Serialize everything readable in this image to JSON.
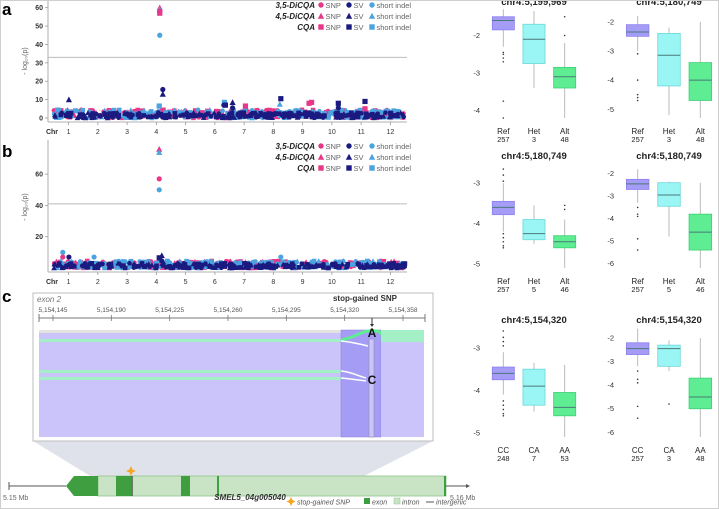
{
  "panels": {
    "a": "a",
    "b": "b",
    "c": "c"
  },
  "legend": {
    "rows": [
      {
        "trait": "3,5-DiCQA",
        "shape": "circle",
        "items": [
          "SNP",
          "SV",
          "short indel"
        ]
      },
      {
        "trait": "4,5-DiCQA",
        "shape": "triangle",
        "items": [
          "SNP",
          "SV",
          "short indel"
        ]
      },
      {
        "trait": "CQA",
        "shape": "square",
        "items": [
          "SNP",
          "SV",
          "short indel"
        ]
      }
    ],
    "colors": {
      "SNP": "#e8378a",
      "SV": "#1a1a80",
      "short indel": "#4ba3e0"
    }
  },
  "chart_data": [
    {
      "id": "manhattan-a",
      "type": "scatter",
      "title": "",
      "xlabel": "Chr",
      "ylabel": "-log10(p)",
      "ylim": [
        0,
        62
      ],
      "yticks": [
        0,
        10,
        20,
        30,
        40,
        50,
        60
      ],
      "categories": [
        "1",
        "2",
        "3",
        "4",
        "5",
        "6",
        "7",
        "8",
        "9",
        "10",
        "11",
        "12"
      ],
      "threshold": 33,
      "suggestive": 4,
      "grid": false,
      "legend_position": "top-right",
      "highlights": [
        {
          "chr": 4,
          "pos": 0.3,
          "value": 60,
          "trait": "4,5-DiCQA",
          "type": "SNP"
        },
        {
          "chr": 4,
          "pos": 0.3,
          "value": 59,
          "trait": "4,5-DiCQA",
          "type": "short indel"
        },
        {
          "chr": 4,
          "pos": 0.3,
          "value": 58,
          "trait": "3,5-DiCQA",
          "type": "SNP"
        },
        {
          "chr": 4,
          "pos": 0.3,
          "value": 57,
          "trait": "CQA",
          "type": "SNP"
        },
        {
          "chr": 4,
          "pos": 0.3,
          "value": 45,
          "trait": "3,5-DiCQA",
          "type": "short indel"
        },
        {
          "chr": 4,
          "pos": 0.6,
          "value": 15.5,
          "trait": "3,5-DiCQA",
          "type": "SV"
        },
        {
          "chr": 4,
          "pos": 0.6,
          "value": 13,
          "trait": "4,5-DiCQA",
          "type": "SV"
        },
        {
          "chr": 1,
          "pos": 0.0,
          "value": 10,
          "trait": "4,5-DiCQA",
          "type": "SV"
        },
        {
          "chr": 4,
          "pos": 0.25,
          "value": 6.5,
          "trait": "CQA",
          "type": "short indel"
        },
        {
          "chr": 6,
          "pos": 0.9,
          "value": 8.5,
          "trait": "CQA",
          "type": "short indel"
        },
        {
          "chr": 6,
          "pos": 0.85,
          "value": 7,
          "trait": "3,5-DiCQA",
          "type": "SV"
        },
        {
          "chr": 6,
          "pos": 1.0,
          "value": 7,
          "trait": "CQA",
          "type": "SV"
        },
        {
          "chr": 6,
          "pos": 1.7,
          "value": 8.5,
          "trait": "4,5-DiCQA",
          "type": "SV"
        },
        {
          "chr": 6,
          "pos": 1.7,
          "value": 5.5,
          "trait": "3,5-DiCQA",
          "type": "SV"
        },
        {
          "chr": 7,
          "pos": 0.1,
          "value": 6.5,
          "trait": "CQA",
          "type": "SNP"
        },
        {
          "chr": 8,
          "pos": 0.6,
          "value": 7.5,
          "trait": "4,5-DiCQA",
          "type": "short indel"
        },
        {
          "chr": 8,
          "pos": 0.7,
          "value": 10.5,
          "trait": "CQA",
          "type": "SV"
        },
        {
          "chr": 9,
          "pos": 0.6,
          "value": 8,
          "trait": "CQA",
          "type": "SNP"
        },
        {
          "chr": 9,
          "pos": 0.85,
          "value": 8.5,
          "trait": "CQA",
          "type": "SNP"
        },
        {
          "chr": 10,
          "pos": 0.6,
          "value": 8,
          "trait": "CQA",
          "type": "SV"
        },
        {
          "chr": 10,
          "pos": 0.6,
          "value": 5.5,
          "trait": "3,5-DiCQA",
          "type": "SV"
        },
        {
          "chr": 11,
          "pos": 0.35,
          "value": 9,
          "trait": "CQA",
          "type": "SV"
        },
        {
          "chr": 11,
          "pos": 0.35,
          "value": 5,
          "trait": "CQA",
          "type": "SNP"
        }
      ]
    },
    {
      "id": "manhattan-b",
      "type": "scatter",
      "title": "",
      "xlabel": "Chr",
      "ylabel": "-log10(p)",
      "ylim": [
        0,
        78
      ],
      "yticks": [
        20,
        40,
        60
      ],
      "categories": [
        "1",
        "2",
        "3",
        "4",
        "5",
        "6",
        "7",
        "8",
        "9",
        "10",
        "11",
        "12"
      ],
      "threshold": 41,
      "suggestive": 4,
      "grid": false,
      "legend_position": "top-right",
      "highlights": [
        {
          "chr": 4,
          "pos": 0.25,
          "value": 76,
          "trait": "4,5-DiCQA",
          "type": "SNP"
        },
        {
          "chr": 4,
          "pos": 0.25,
          "value": 74,
          "trait": "4,5-DiCQA",
          "type": "short indel"
        },
        {
          "chr": 4,
          "pos": 0.25,
          "value": 57,
          "trait": "3,5-DiCQA",
          "type": "SNP"
        },
        {
          "chr": 4,
          "pos": 0.25,
          "value": 50,
          "trait": "3,5-DiCQA",
          "type": "short indel"
        },
        {
          "chr": 1,
          "pos": -0.6,
          "value": 10,
          "trait": "3,5-DiCQA",
          "type": "short indel"
        },
        {
          "chr": 1,
          "pos": -0.6,
          "value": 7,
          "trait": "3,5-DiCQA",
          "type": "SNP"
        },
        {
          "chr": 1,
          "pos": 0.0,
          "value": 7,
          "trait": "3,5-DiCQA",
          "type": "SV"
        },
        {
          "chr": 2,
          "pos": -0.4,
          "value": 7,
          "trait": "3,5-DiCQA",
          "type": "short indel"
        },
        {
          "chr": 4,
          "pos": 0.25,
          "value": 6.5,
          "trait": "CQA",
          "type": "SV"
        },
        {
          "chr": 4,
          "pos": 0.5,
          "value": 8,
          "trait": "4,5-DiCQA",
          "type": "SV"
        },
        {
          "chr": 4,
          "pos": 0.5,
          "value": 4.5,
          "trait": "3,5-DiCQA",
          "type": "SV"
        },
        {
          "chr": 8,
          "pos": 0.7,
          "value": 7,
          "trait": "3,5-DiCQA",
          "type": "short indel"
        }
      ]
    },
    {
      "id": "box-a1",
      "type": "box",
      "title": "chr4:5,199,969",
      "yticks": [
        -2,
        -3,
        -4
      ],
      "ylim": [
        -4.2,
        -1.4
      ],
      "categories": [
        "Ref",
        "Het",
        "Alt"
      ],
      "counts": [
        "257",
        "3",
        "48"
      ],
      "boxes": [
        {
          "q1": -1.85,
          "median": -1.6,
          "q3": -1.5,
          "wlo": -2.3,
          "whi": -1.3,
          "outliers": [
            -2.45,
            -2.5,
            -2.6,
            -2.7,
            -3.75,
            -4.2
          ]
        },
        {
          "q1": -2.75,
          "median": -2.1,
          "q3": -1.7,
          "wlo": -3.4,
          "whi": -1.35,
          "outliers": []
        },
        {
          "q1": -3.4,
          "median": -3.1,
          "q3": -2.85,
          "wlo": -4.2,
          "whi": -2.2,
          "outliers": [
            -2.0,
            -1.5
          ]
        }
      ]
    },
    {
      "id": "box-a2",
      "type": "box",
      "title": "chr4:5,180,749",
      "yticks": [
        -2,
        -3,
        -4,
        -5
      ],
      "ylim": [
        -5.3,
        -1.7
      ],
      "categories": [
        "Ref",
        "Het",
        "Alt"
      ],
      "counts": [
        "257",
        "3",
        "48"
      ],
      "boxes": [
        {
          "q1": -2.5,
          "median": -2.35,
          "q3": -2.1,
          "wlo": -3.0,
          "whi": -1.8,
          "outliers": [
            -3.1,
            -4.0,
            -4.5,
            -4.6,
            -4.7
          ]
        },
        {
          "q1": -4.2,
          "median": -3.15,
          "q3": -2.4,
          "wlo": -5.2,
          "whi": -2.2,
          "outliers": []
        },
        {
          "q1": -4.7,
          "median": -4.0,
          "q3": -3.4,
          "wlo": -5.3,
          "whi": -2.0,
          "outliers": []
        }
      ]
    },
    {
      "id": "box-b1",
      "type": "box",
      "title": "chr4:5,180,749",
      "yticks": [
        -3,
        -4,
        -5
      ],
      "ylim": [
        -5.1,
        -2.6
      ],
      "categories": [
        "Ref",
        "Het",
        "Alt"
      ],
      "counts": [
        "257",
        "5",
        "46"
      ],
      "boxes": [
        {
          "q1": -3.78,
          "median": -3.6,
          "q3": -3.45,
          "wlo": -4.2,
          "whi": -3.0,
          "outliers": [
            -2.65,
            -2.8,
            -2.95,
            -4.25,
            -4.35,
            -4.45,
            -4.55,
            -4.6
          ]
        },
        {
          "q1": -4.4,
          "median": -4.25,
          "q3": -3.9,
          "wlo": -4.5,
          "whi": -3.55,
          "outliers": []
        },
        {
          "q1": -4.6,
          "median": -4.45,
          "q3": -4.3,
          "wlo": -5.1,
          "whi": -3.9,
          "outliers": [
            -3.55,
            -3.65
          ]
        }
      ]
    },
    {
      "id": "box-b2",
      "type": "box",
      "title": "chr4:5,180,749",
      "yticks": [
        -2,
        -3,
        -4,
        -5,
        -6
      ],
      "ylim": [
        -6.2,
        -1.7
      ],
      "categories": [
        "Ref",
        "Het",
        "Alt"
      ],
      "counts": [
        "257",
        "5",
        "46"
      ],
      "boxes": [
        {
          "q1": -2.7,
          "median": -2.45,
          "q3": -2.25,
          "wlo": -3.3,
          "whi": -1.8,
          "outliers": [
            -3.5,
            -3.8,
            -3.9,
            -4.9,
            -5.4
          ]
        },
        {
          "q1": -3.45,
          "median": -2.95,
          "q3": -2.4,
          "wlo": -4.8,
          "whi": -2.35,
          "outliers": []
        },
        {
          "q1": -5.4,
          "median": -4.6,
          "q3": -3.8,
          "wlo": -6.2,
          "whi": -2.4,
          "outliers": []
        }
      ]
    },
    {
      "id": "box-c1",
      "type": "box",
      "title": "chr4:5,154,320",
      "yticks": [
        -3,
        -4,
        -5
      ],
      "ylim": [
        -5.1,
        -2.6
      ],
      "categories": [
        "CC",
        "CA",
        "AA"
      ],
      "counts": [
        "248",
        "7",
        "53"
      ],
      "boxes": [
        {
          "q1": -3.75,
          "median": -3.6,
          "q3": -3.45,
          "wlo": -4.1,
          "whi": -3.1,
          "outliers": [
            -2.6,
            -2.75,
            -2.85,
            -2.95,
            -4.25,
            -4.35,
            -4.45,
            -4.55,
            -4.6
          ]
        },
        {
          "q1": -4.35,
          "median": -3.9,
          "q3": -3.5,
          "wlo": -4.5,
          "whi": -3.35,
          "outliers": []
        },
        {
          "q1": -4.6,
          "median": -4.4,
          "q3": -4.05,
          "wlo": -5.1,
          "whi": -3.4,
          "outliers": []
        }
      ]
    },
    {
      "id": "box-c2",
      "type": "box",
      "title": "chr4:5,154,320",
      "yticks": [
        -2,
        -3,
        -4,
        -5,
        -6
      ],
      "ylim": [
        -6.2,
        -1.7
      ],
      "categories": [
        "CC",
        "CA",
        "AA"
      ],
      "counts": [
        "257",
        "3",
        "48"
      ],
      "boxes": [
        {
          "q1": -2.7,
          "median": -2.45,
          "q3": -2.2,
          "wlo": -3.2,
          "whi": -1.6,
          "outliers": [
            -3.4,
            -3.75,
            -3.9,
            -4.9,
            -5.4
          ]
        },
        {
          "q1": -3.2,
          "median": -2.45,
          "q3": -2.3,
          "wlo": -3.4,
          "whi": -2.1,
          "outliers": [
            -4.8
          ]
        },
        {
          "q1": -5.0,
          "median": -4.5,
          "q3": -3.7,
          "wlo": -6.2,
          "whi": -2.0,
          "outliers": []
        }
      ]
    }
  ],
  "panel_c": {
    "exon_label": "exon 2",
    "axis_ticks": [
      "5,154,145",
      "5,154,190",
      "5,154,225",
      "5,154,260",
      "5,154,295",
      "5,154,320",
      "5,154,358"
    ],
    "snp_label": "stop-gained SNP",
    "allele_top": "A",
    "allele_bottom": "C",
    "gene_name": "SMEL5_04g005040",
    "scale_left": "5.15 Mb",
    "scale_right": "5.16 Mb",
    "legend": {
      "snp": "stop-gained SNP",
      "exon": "exon",
      "intron": "intron",
      "intergenic": "intergenic"
    }
  },
  "colors": {
    "ref": "#a59cf5",
    "het": "#9af5f5",
    "alt": "#5eed92",
    "read_purple": "#cac4fb",
    "read_green": "#a3efc6",
    "exon": "#3f9e3f",
    "intron": "#c8e4c4",
    "snp_star": "#f5a623"
  }
}
